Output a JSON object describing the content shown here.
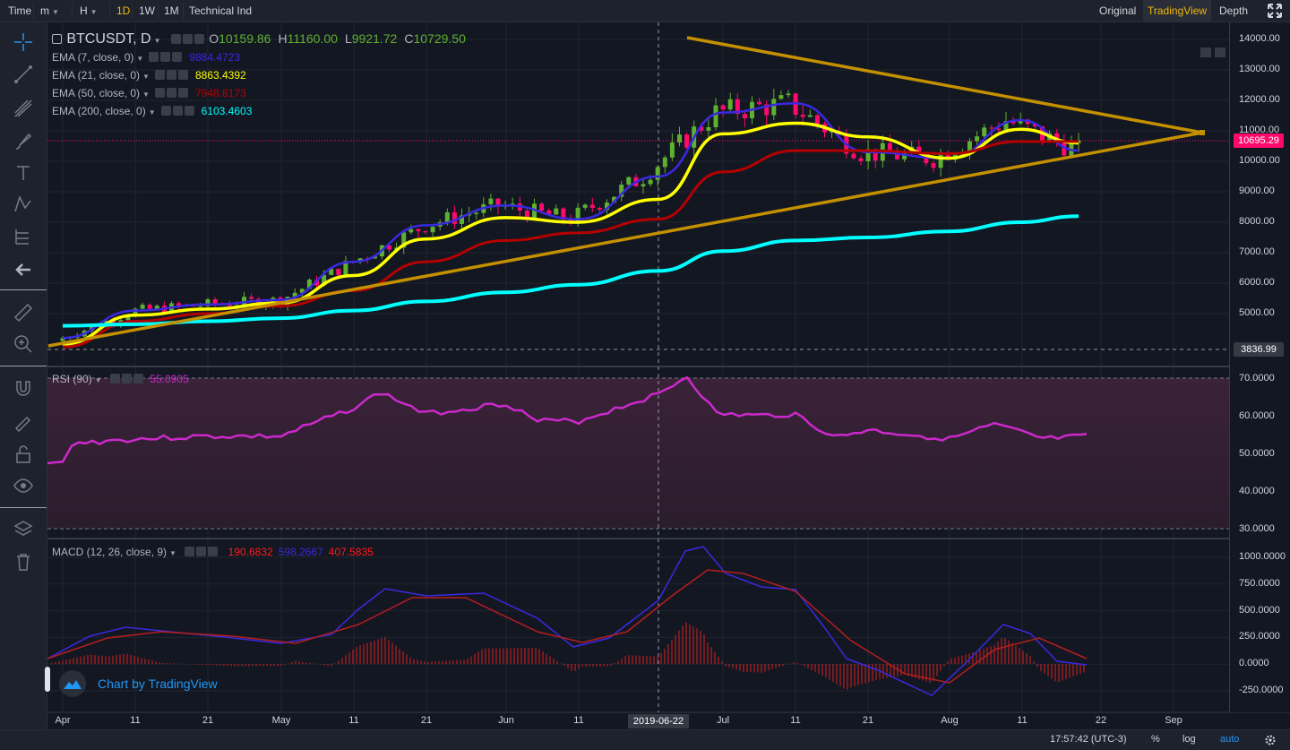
{
  "topbar": {
    "left": [
      {
        "label": "Time",
        "active": false
      },
      {
        "label": "m",
        "active": false,
        "dropdown": true
      },
      {
        "label": "H",
        "active": false,
        "dropdown": true
      },
      {
        "label": "1D",
        "active": true
      },
      {
        "label": "1W",
        "active": false
      },
      {
        "label": "1M",
        "active": false
      },
      {
        "label": "Technical Ind",
        "active": false
      }
    ],
    "right": [
      {
        "label": "Original",
        "active": false
      },
      {
        "label": "TradingView",
        "active": true
      },
      {
        "label": "Depth",
        "active": false
      }
    ],
    "fullscreen_icon": "expand-icon"
  },
  "left_toolbar": {
    "icons": [
      "crosshair-icon",
      "trend-line-icon",
      "pitchfork-icon",
      "brush-icon",
      "text-icon",
      "pattern-icon",
      "prediction-icon",
      "back-arrow-icon",
      "ruler-icon",
      "zoom-in-icon",
      "magnet-icon",
      "lock-drawing-icon",
      "unlock-icon",
      "eye-icon",
      "layers-icon",
      "trash-icon"
    ]
  },
  "main_pane": {
    "symbol": "BTCUSDT, D",
    "ohlc": [
      {
        "label": "O",
        "value": "10159.86"
      },
      {
        "label": "H",
        "value": "11160.00"
      },
      {
        "label": "L",
        "value": "9921.72"
      },
      {
        "label": "C",
        "value": "10729.50"
      }
    ],
    "indicators": [
      {
        "name": "EMA (7, close, 0)",
        "value": "9884.4723",
        "color": "#3a29e0"
      },
      {
        "name": "EMA (21, close, 0)",
        "value": "8863.4392",
        "color": "#ffff00"
      },
      {
        "name": "EMA (50, close, 0)",
        "value": "7948.8173",
        "color": "#b50000"
      },
      {
        "name": "EMA (200, close, 0)",
        "value": "6103.4603",
        "color": "#00ffff"
      }
    ],
    "price_ticks": [
      "14000.00",
      "13000.00",
      "12000.00",
      "11000.00",
      "10000.00",
      "9000.00",
      "8000.00",
      "7000.00",
      "6000.00",
      "5000.00"
    ],
    "last_price": "10695.29",
    "crosshair_price": "3836.99",
    "last_price_color": "#ff0a6c"
  },
  "rsi_pane": {
    "name": "RSI (90)",
    "value": "55.0905",
    "ticks": [
      "70.0000",
      "60.0000",
      "50.0000",
      "40.0000",
      "30.0000"
    ],
    "color": "#cc29cc"
  },
  "macd_pane": {
    "name": "MACD (12, 26, close, 9)",
    "values": [
      {
        "value": "190.6832",
        "color": "#ff1c1c"
      },
      {
        "value": "598.2667",
        "color": "#3a29e0"
      },
      {
        "value": "407.5835",
        "color": "#ff1c1c"
      }
    ],
    "ticks": [
      "1000.0000",
      "750.0000",
      "500.0000",
      "250.0000",
      "0.0000",
      "-250.0000"
    ]
  },
  "time_axis": {
    "labels": [
      "Apr",
      "11",
      "21",
      "May",
      "11",
      "21",
      "Jun",
      "11",
      "Jul",
      "11",
      "21",
      "Aug",
      "11",
      "22",
      "Sep"
    ],
    "crosshair_date": "2019-06-22"
  },
  "branding": "Chart by TradingView",
  "bottom_bar": {
    "clock": "17:57:42 (UTC-3)",
    "percent": "%",
    "log": "log",
    "auto": "auto",
    "settings_icon": "gear-icon"
  },
  "chart_data": {
    "type": "line",
    "title": "BTCUSDT, D",
    "x": [
      "2019-04-01",
      "2019-04-11",
      "2019-04-21",
      "2019-05-01",
      "2019-05-11",
      "2019-05-21",
      "2019-06-01",
      "2019-06-11",
      "2019-06-22",
      "2019-07-01",
      "2019-07-11",
      "2019-07-21",
      "2019-08-01",
      "2019-08-11",
      "2019-08-19"
    ],
    "series": [
      {
        "name": "EMA (7, close, 0)",
        "values": [
          4200,
          5100,
          5300,
          5450,
          6700,
          7900,
          8550,
          8100,
          9500,
          11600,
          11900,
          10300,
          10100,
          11350,
          10350
        ]
      },
      {
        "name": "EMA (21, close, 0)",
        "values": [
          4000,
          4950,
          5150,
          5350,
          6250,
          7450,
          8150,
          8000,
          8750,
          10900,
          11250,
          10800,
          10100,
          11050,
          10600
        ]
      },
      {
        "name": "EMA (50, close, 0)",
        "values": [
          3900,
          4750,
          5000,
          5250,
          5750,
          6700,
          7400,
          7650,
          8100,
          9650,
          10350,
          10350,
          10250,
          10650,
          10650
        ]
      },
      {
        "name": "EMA (200, close, 0)",
        "values": [
          4600,
          4650,
          4750,
          4850,
          5100,
          5400,
          5700,
          5950,
          6400,
          7050,
          7400,
          7500,
          7700,
          8000,
          8200
        ]
      }
    ],
    "ylim": [
      3500,
      14200
    ],
    "scale": "linear",
    "grid": true
  }
}
